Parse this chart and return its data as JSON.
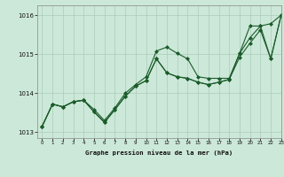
{
  "title": "Graphe pression niveau de la mer (hPa)",
  "background_color": "#cce8d8",
  "grid_color": "#aaccbb",
  "line_color": "#1a5c2a",
  "marker_color": "#1a5c2a",
  "xlim": [
    -0.5,
    23
  ],
  "ylim": [
    1012.85,
    1016.25
  ],
  "yticks": [
    1013,
    1014,
    1015,
    1016
  ],
  "ytick_labels": [
    "1013",
    "1014",
    "1015",
    "1016"
  ],
  "xticks": [
    0,
    1,
    2,
    3,
    4,
    5,
    6,
    7,
    8,
    9,
    10,
    11,
    12,
    13,
    14,
    15,
    16,
    17,
    18,
    19,
    20,
    21,
    22,
    23
  ],
  "series": [
    [
      1013.15,
      1013.72,
      1013.65,
      1013.78,
      1013.82,
      1013.58,
      1013.3,
      1013.62,
      1014.0,
      1014.22,
      1014.42,
      1015.08,
      1015.18,
      1015.02,
      1014.88,
      1014.42,
      1014.38,
      1014.38,
      1014.38,
      1015.02,
      1015.42,
      1015.72,
      1015.78,
      1016.0
    ],
    [
      1013.15,
      1013.72,
      1013.65,
      1013.78,
      1013.82,
      1013.52,
      1013.25,
      1013.58,
      1013.92,
      1014.18,
      1014.32,
      1014.88,
      1014.52,
      1014.42,
      1014.38,
      1014.28,
      1014.22,
      1014.28,
      1014.35,
      1015.02,
      1015.72,
      1015.72,
      1014.88,
      1016.0
    ],
    [
      1013.15,
      1013.72,
      1013.65,
      1013.78,
      1013.82,
      1013.52,
      1013.25,
      1013.58,
      1013.92,
      1014.18,
      1014.32,
      1014.88,
      1014.52,
      1014.42,
      1014.38,
      1014.28,
      1014.22,
      1014.28,
      1014.35,
      1014.92,
      1015.28,
      1015.62,
      1014.88,
      1016.0
    ]
  ]
}
